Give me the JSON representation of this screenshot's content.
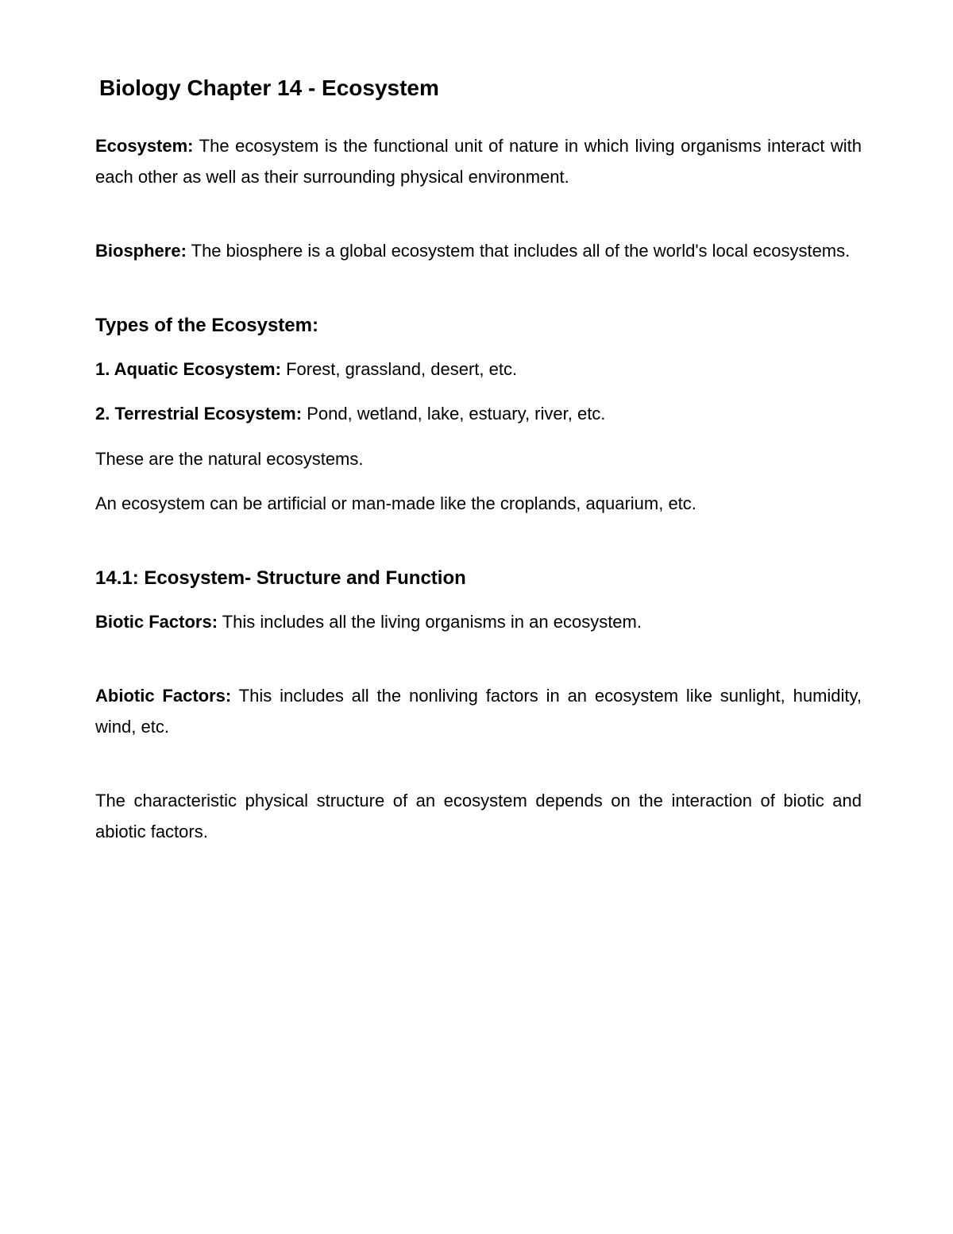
{
  "title": "Biology Chapter 14 - Ecosystem",
  "definitions": {
    "ecosystem": {
      "label": "Ecosystem:",
      "text": " The ecosystem is the functional unit of nature in which living organisms interact with each other as well as their surrounding physical environment."
    },
    "biosphere": {
      "label": "Biosphere:",
      "text": " The biosphere is a global ecosystem that includes all of the world's local ecosystems."
    }
  },
  "types": {
    "heading": "Types of the Ecosystem:",
    "items": [
      {
        "num": "1.  ",
        "label": "Aquatic Ecosystem:",
        "text": " Forest, grassland, desert, etc."
      },
      {
        "num": "2. ",
        "label": "Terrestrial Ecosystem:",
        "text": " Pond, wetland, lake, estuary, river, etc."
      }
    ],
    "note1": "These are the natural ecosystems.",
    "note2": "An ecosystem can be artificial or man-made like the croplands, aquarium, etc."
  },
  "section14_1": {
    "heading": "14.1: Ecosystem- Structure and Function",
    "biotic": {
      "label": "Biotic Factors:",
      "text": " This includes all the living organisms in an ecosystem."
    },
    "abiotic": {
      "label": "Abiotic Factors:",
      "text": " This includes all the nonliving factors in an ecosystem like sunlight, humidity, wind, etc."
    },
    "closing": "The characteristic physical structure of an ecosystem depends on the interaction of biotic and abiotic factors."
  }
}
